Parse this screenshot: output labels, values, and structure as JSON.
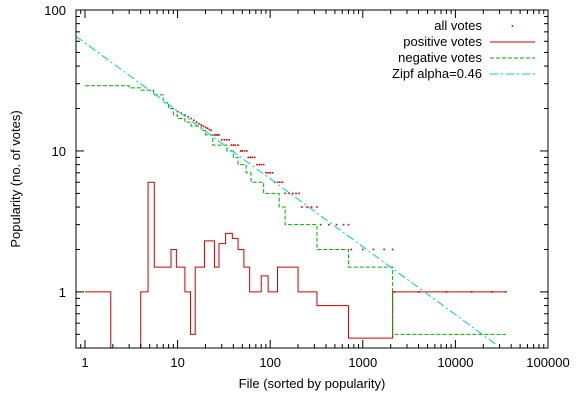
{
  "chart_data": {
    "type": "line",
    "xlabel": "File (sorted by popularity)",
    "ylabel": "Popularity (no. of votes)",
    "x_scale": "log",
    "y_scale": "log",
    "xlim": [
      0.8,
      100000
    ],
    "ylim": [
      0.4,
      100
    ],
    "x_ticks": [
      {
        "value": 1,
        "label": "1"
      },
      {
        "value": 10,
        "label": "10"
      },
      {
        "value": 100,
        "label": "100"
      },
      {
        "value": 1000,
        "label": "1000"
      },
      {
        "value": 10000,
        "label": "10000"
      },
      {
        "value": 100000,
        "label": "100000"
      }
    ],
    "y_ticks": [
      {
        "value": 1,
        "label": "1"
      },
      {
        "value": 10,
        "label": "10"
      },
      {
        "value": 100,
        "label": "100"
      }
    ],
    "grid": false,
    "legend_position": "top-right",
    "series": [
      {
        "name": "all votes",
        "style": "points",
        "color": "#cc0000",
        "points": [
          [
            10,
            19
          ],
          [
            11,
            18.5
          ],
          [
            12,
            18
          ],
          [
            13,
            17.5
          ],
          [
            14,
            17
          ],
          [
            15,
            16.5
          ],
          [
            16,
            16
          ],
          [
            17,
            15.6
          ],
          [
            18,
            15.3
          ],
          [
            19,
            15
          ],
          [
            20,
            14.7
          ],
          [
            21,
            14.5
          ],
          [
            22,
            14.2
          ],
          [
            23,
            14
          ],
          [
            25,
            13
          ],
          [
            26,
            13
          ],
          [
            27,
            13
          ],
          [
            28,
            13
          ],
          [
            30,
            12
          ],
          [
            32,
            12
          ],
          [
            34,
            12
          ],
          [
            36,
            12
          ],
          [
            38,
            11
          ],
          [
            40,
            11
          ],
          [
            42,
            11
          ],
          [
            45,
            11
          ],
          [
            48,
            10
          ],
          [
            50,
            10
          ],
          [
            53,
            10
          ],
          [
            56,
            10
          ],
          [
            58,
            9
          ],
          [
            61,
            9
          ],
          [
            64,
            9
          ],
          [
            68,
            9
          ],
          [
            72,
            8
          ],
          [
            76,
            8
          ],
          [
            80,
            8
          ],
          [
            85,
            8
          ],
          [
            90,
            7
          ],
          [
            95,
            7
          ],
          [
            100,
            7
          ],
          [
            106,
            7
          ],
          [
            112,
            6
          ],
          [
            120,
            6
          ],
          [
            127,
            6
          ],
          [
            135,
            6
          ],
          [
            145,
            5
          ],
          [
            160,
            5
          ],
          [
            175,
            5
          ],
          [
            190,
            5
          ],
          [
            205,
            5
          ],
          [
            220,
            4
          ],
          [
            250,
            4
          ],
          [
            280,
            4
          ],
          [
            320,
            4
          ],
          [
            350,
            3
          ],
          [
            430,
            3
          ],
          [
            520,
            3
          ],
          [
            620,
            3
          ],
          [
            700,
            3
          ],
          [
            750,
            2
          ],
          [
            1000,
            2
          ],
          [
            1300,
            2
          ],
          [
            1700,
            2
          ],
          [
            2100,
            2
          ],
          [
            2200,
            1
          ],
          [
            4000,
            1
          ],
          [
            8000,
            1
          ],
          [
            15000,
            1
          ],
          [
            25000,
            1
          ],
          [
            35000,
            1
          ]
        ]
      },
      {
        "name": "positive votes",
        "style": "steps",
        "color": "#cc0000",
        "points": [
          [
            1,
            1
          ],
          [
            1.9,
            1
          ],
          [
            1.9,
            0.3
          ],
          [
            4,
            0.3
          ],
          [
            4,
            1
          ],
          [
            4.8,
            1
          ],
          [
            4.8,
            6
          ],
          [
            5.6,
            6
          ],
          [
            5.6,
            1.5
          ],
          [
            8.5,
            1.5
          ],
          [
            8.5,
            2
          ],
          [
            9.7,
            2
          ],
          [
            9.7,
            1.5
          ],
          [
            12,
            1.5
          ],
          [
            12,
            1
          ],
          [
            13.8,
            1
          ],
          [
            13.8,
            0.5
          ],
          [
            15.5,
            0.5
          ],
          [
            15.5,
            1.5
          ],
          [
            19.5,
            1.5
          ],
          [
            19.5,
            2.3
          ],
          [
            25,
            2.3
          ],
          [
            25,
            1.5
          ],
          [
            28,
            1.5
          ],
          [
            28,
            2.2
          ],
          [
            33,
            2.2
          ],
          [
            33,
            2.6
          ],
          [
            39,
            2.6
          ],
          [
            39,
            2.4
          ],
          [
            45,
            2.4
          ],
          [
            45,
            2
          ],
          [
            52,
            2
          ],
          [
            52,
            1.5
          ],
          [
            60,
            1.5
          ],
          [
            60,
            1
          ],
          [
            80,
            1
          ],
          [
            80,
            1.3
          ],
          [
            95,
            1.3
          ],
          [
            95,
            1
          ],
          [
            120,
            1
          ],
          [
            120,
            1.5
          ],
          [
            200,
            1.5
          ],
          [
            200,
            1
          ],
          [
            320,
            1
          ],
          [
            320,
            0.8
          ],
          [
            700,
            0.8
          ],
          [
            700,
            0.47
          ],
          [
            2100,
            0.47
          ],
          [
            2100,
            1
          ],
          [
            35000,
            1
          ]
        ]
      },
      {
        "name": "negative votes",
        "style": "steps",
        "color": "#00aa00",
        "points": [
          [
            1,
            29
          ],
          [
            3,
            29
          ],
          [
            3,
            28
          ],
          [
            4,
            28
          ],
          [
            4,
            27
          ],
          [
            5.5,
            27
          ],
          [
            5.5,
            25
          ],
          [
            7,
            25
          ],
          [
            7,
            22
          ],
          [
            8,
            22
          ],
          [
            8,
            20
          ],
          [
            9,
            20
          ],
          [
            9,
            18
          ],
          [
            10,
            18
          ],
          [
            10,
            17
          ],
          [
            12,
            17
          ],
          [
            12,
            16
          ],
          [
            14,
            16
          ],
          [
            14,
            15
          ],
          [
            18,
            15
          ],
          [
            18,
            14
          ],
          [
            20,
            14
          ],
          [
            20,
            13
          ],
          [
            24,
            13
          ],
          [
            24,
            11
          ],
          [
            34,
            11
          ],
          [
            34,
            10
          ],
          [
            40,
            10
          ],
          [
            40,
            9
          ],
          [
            45,
            9
          ],
          [
            45,
            8
          ],
          [
            55,
            8
          ],
          [
            55,
            7
          ],
          [
            62,
            7
          ],
          [
            62,
            6
          ],
          [
            85,
            6
          ],
          [
            85,
            5
          ],
          [
            125,
            5
          ],
          [
            125,
            4
          ],
          [
            145,
            4
          ],
          [
            145,
            3
          ],
          [
            320,
            3
          ],
          [
            320,
            2
          ],
          [
            700,
            2
          ],
          [
            700,
            1.5
          ],
          [
            2100,
            1.5
          ],
          [
            2100,
            0.5
          ],
          [
            35000,
            0.5
          ]
        ]
      },
      {
        "name": "Zipf alpha=0.46",
        "style": "dash-dot",
        "color": "#00cccc",
        "alpha": 0.46,
        "points": [
          [
            0.8,
            65
          ],
          [
            28000,
            0.42
          ]
        ]
      }
    ]
  }
}
